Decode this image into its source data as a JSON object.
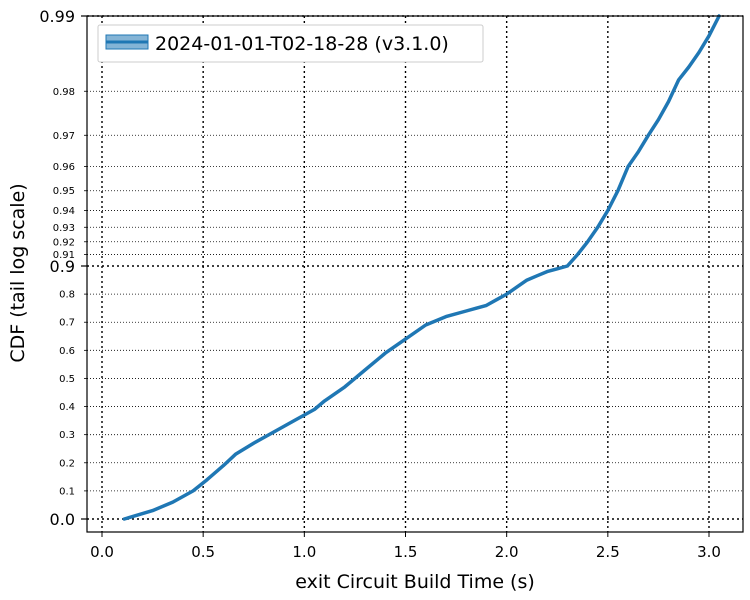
{
  "chart_data": {
    "type": "line",
    "xlabel": "exit Circuit Build Time (s)",
    "ylabel": "CDF (tail log scale)",
    "xlim": [
      -0.07,
      3.17
    ],
    "x_ticks": [
      0.0,
      0.5,
      1.0,
      1.5,
      2.0,
      2.5,
      3.0
    ],
    "x_tick_labels": [
      "0.0",
      "0.5",
      "1.0",
      "1.5",
      "2.0",
      "2.5",
      "3.0"
    ],
    "y_scale": "tail log scale",
    "y_major_ticks": [
      0.0,
      0.9,
      0.99
    ],
    "y_major_labels": [
      "0.0",
      "0.9",
      "0.99"
    ],
    "y_minor_ticks": [
      0.1,
      0.2,
      0.3,
      0.4,
      0.5,
      0.6,
      0.7,
      0.8,
      0.91,
      0.92,
      0.93,
      0.94,
      0.95,
      0.96,
      0.97,
      0.98
    ],
    "y_minor_labels": [
      "0.1",
      "0.2",
      "0.3",
      "0.4",
      "0.5",
      "0.6",
      "0.7",
      "0.8",
      "0.91",
      "0.92",
      "0.93",
      "0.94",
      "0.95",
      "0.96",
      "0.97",
      "0.98"
    ],
    "grid": true,
    "legend_position": "top-left",
    "series": [
      {
        "name": "2024-01-01-T02-18-28 (v3.1.0)",
        "color": "#1f77b4",
        "x": [
          0.11,
          0.25,
          0.35,
          0.45,
          0.52,
          0.6,
          0.66,
          0.75,
          0.85,
          0.95,
          1.05,
          1.1,
          1.2,
          1.3,
          1.4,
          1.5,
          1.6,
          1.7,
          1.8,
          1.85,
          1.9,
          1.95,
          2.0,
          2.05,
          2.1,
          2.15,
          2.2,
          2.25,
          2.3,
          2.35,
          2.4,
          2.45,
          2.5,
          2.55,
          2.6,
          2.65,
          2.7,
          2.75,
          2.8,
          2.85,
          2.9,
          2.95,
          3.0,
          3.05
        ],
        "y": [
          0.0,
          0.03,
          0.06,
          0.1,
          0.14,
          0.19,
          0.23,
          0.27,
          0.31,
          0.35,
          0.39,
          0.42,
          0.47,
          0.53,
          0.59,
          0.64,
          0.69,
          0.72,
          0.74,
          0.75,
          0.76,
          0.78,
          0.8,
          0.825,
          0.85,
          0.865,
          0.88,
          0.89,
          0.9,
          0.91,
          0.92,
          0.93,
          0.94,
          0.95,
          0.96,
          0.965,
          0.97,
          0.974,
          0.978,
          0.982,
          0.984,
          0.986,
          0.988,
          0.99
        ]
      }
    ]
  }
}
